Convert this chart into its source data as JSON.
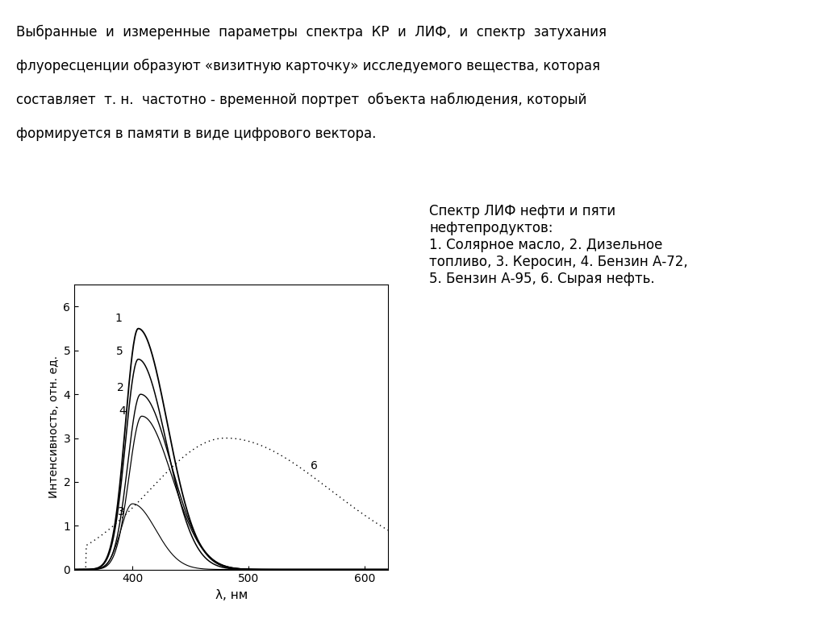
{
  "title_lines": [
    "Выбранные  и  измеренные  параметры  спектра  КР  и  ЛИФ,  и  спектр  затухания",
    "флуоресценции образуют «визитную карточку» исследуемого вещества, которая",
    "составляет  т. н.  частотно - временной портрет  объекта наблюдения, который",
    "формируется в памяти в виде цифрового вектора."
  ],
  "legend_text": "Спектр ЛИФ нефти и пяти\nнефтепродуктов:\n1. Солярное масло, 2. Дизельное\nтопливо, 3. Керосин, 4. Бензин А-72,\n5. Бензин А-95, 6. Сырая нефть.",
  "xlabel": "λ, нм",
  "ylabel": "Интенсивность, отн. ед.",
  "xlim": [
    350,
    620
  ],
  "ylim": [
    0,
    6.5
  ],
  "yticks": [
    0,
    1,
    2,
    3,
    4,
    5,
    6
  ],
  "xticks": [
    400,
    500,
    600
  ],
  "background_color": "#ffffff"
}
